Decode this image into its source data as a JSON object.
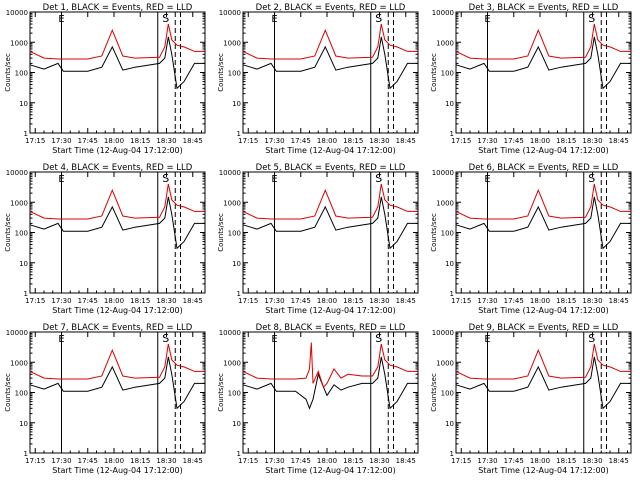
{
  "figure": {
    "ylabel": "Counts/sec",
    "xlabel": "Start Time (12-Aug-04 17:12:00)",
    "ytick_labels": [
      "1",
      "10",
      "100",
      "1000",
      "10000"
    ],
    "xtick_labels": [
      "17:15",
      "17:30",
      "17:45",
      "18:00",
      "18:15",
      "18:30",
      "18:45"
    ],
    "marker_S": "S",
    "marker_E": "E"
  },
  "colors": {
    "events": "#000000",
    "lld": "#dd0000"
  },
  "chart_data": [
    {
      "type": "line",
      "title": "Det 1, BLACK = Events, RED = LLD",
      "x_unit": "HH:MM",
      "xlim": [
        "17:12",
        "18:52"
      ],
      "ylim": [
        1,
        10000
      ],
      "yscale": "log",
      "series": [
        {
          "name": "Events",
          "x": [
            "17:12",
            "17:20",
            "17:28",
            "17:31",
            "17:45",
            "17:53",
            "17:59",
            "18:05",
            "18:12",
            "18:26",
            "18:29",
            "18:31",
            "18:33",
            "18:36",
            "18:40",
            "18:46",
            "18:52"
          ],
          "y": [
            180,
            130,
            200,
            110,
            110,
            150,
            700,
            120,
            150,
            200,
            300,
            1500,
            400,
            30,
            50,
            200,
            200
          ]
        },
        {
          "name": "LLD",
          "x": [
            "17:12",
            "17:20",
            "17:28",
            "17:31",
            "17:45",
            "17:53",
            "17:59",
            "18:05",
            "18:12",
            "18:26",
            "18:29",
            "18:31",
            "18:33",
            "18:36",
            "18:40",
            "18:46",
            "18:52"
          ],
          "y": [
            500,
            300,
            280,
            280,
            280,
            350,
            2500,
            350,
            300,
            320,
            700,
            4000,
            1200,
            800,
            700,
            500,
            500
          ]
        }
      ],
      "vlines": [
        "17:30",
        "18:25"
      ],
      "vlines_dashed": [
        "18:35",
        "18:38"
      ]
    },
    {
      "type": "line",
      "title": "Det 2, BLACK = Events, RED = LLD",
      "x_unit": "HH:MM",
      "xlim": [
        "17:12",
        "18:52"
      ],
      "ylim": [
        1,
        10000
      ],
      "yscale": "log",
      "series": [
        {
          "name": "Events",
          "x": [
            "17:12",
            "17:20",
            "17:28",
            "17:31",
            "17:45",
            "17:53",
            "17:59",
            "18:05",
            "18:12",
            "18:26",
            "18:29",
            "18:31",
            "18:33",
            "18:36",
            "18:40",
            "18:46",
            "18:52"
          ],
          "y": [
            180,
            130,
            200,
            110,
            110,
            150,
            700,
            120,
            150,
            200,
            300,
            1500,
            400,
            30,
            50,
            200,
            200
          ]
        },
        {
          "name": "LLD",
          "x": [
            "17:12",
            "17:20",
            "17:28",
            "17:31",
            "17:45",
            "17:53",
            "17:59",
            "18:05",
            "18:12",
            "18:26",
            "18:29",
            "18:31",
            "18:33",
            "18:36",
            "18:40",
            "18:46",
            "18:52"
          ],
          "y": [
            500,
            300,
            280,
            280,
            280,
            350,
            2500,
            350,
            300,
            320,
            700,
            4000,
            1200,
            800,
            700,
            500,
            500
          ]
        }
      ],
      "vlines": [
        "17:30",
        "18:25"
      ],
      "vlines_dashed": [
        "18:35",
        "18:38"
      ]
    },
    {
      "type": "line",
      "title": "Det 3, BLACK = Events, RED = LLD",
      "x_unit": "HH:MM",
      "xlim": [
        "17:12",
        "18:52"
      ],
      "ylim": [
        1,
        10000
      ],
      "yscale": "log",
      "series": [
        {
          "name": "Events",
          "x": [
            "17:12",
            "17:20",
            "17:28",
            "17:31",
            "17:45",
            "17:53",
            "17:59",
            "18:05",
            "18:12",
            "18:26",
            "18:29",
            "18:31",
            "18:33",
            "18:36",
            "18:40",
            "18:46",
            "18:52"
          ],
          "y": [
            180,
            130,
            200,
            110,
            110,
            150,
            700,
            120,
            150,
            200,
            300,
            1500,
            400,
            30,
            50,
            200,
            200
          ]
        },
        {
          "name": "LLD",
          "x": [
            "17:12",
            "17:20",
            "17:28",
            "17:31",
            "17:45",
            "17:53",
            "17:59",
            "18:05",
            "18:12",
            "18:26",
            "18:29",
            "18:31",
            "18:33",
            "18:36",
            "18:40",
            "18:46",
            "18:52"
          ],
          "y": [
            500,
            300,
            280,
            280,
            280,
            350,
            2500,
            350,
            300,
            320,
            700,
            4000,
            1200,
            800,
            700,
            500,
            500
          ]
        }
      ],
      "vlines": [
        "17:30",
        "18:25"
      ],
      "vlines_dashed": [
        "18:35",
        "18:38"
      ]
    },
    {
      "type": "line",
      "title": "Det 4, BLACK = Events, RED = LLD",
      "x_unit": "HH:MM",
      "xlim": [
        "17:12",
        "18:52"
      ],
      "ylim": [
        1,
        10000
      ],
      "yscale": "log",
      "series": [
        {
          "name": "Events",
          "x": [
            "17:12",
            "17:20",
            "17:28",
            "17:31",
            "17:45",
            "17:53",
            "17:59",
            "18:05",
            "18:12",
            "18:26",
            "18:29",
            "18:31",
            "18:33",
            "18:36",
            "18:40",
            "18:46",
            "18:52"
          ],
          "y": [
            180,
            130,
            200,
            110,
            110,
            150,
            700,
            120,
            150,
            200,
            300,
            1500,
            400,
            30,
            50,
            200,
            200
          ]
        },
        {
          "name": "LLD",
          "x": [
            "17:12",
            "17:20",
            "17:28",
            "17:31",
            "17:45",
            "17:53",
            "17:59",
            "18:05",
            "18:12",
            "18:26",
            "18:29",
            "18:31",
            "18:33",
            "18:36",
            "18:40",
            "18:46",
            "18:52"
          ],
          "y": [
            500,
            300,
            280,
            280,
            280,
            350,
            2500,
            350,
            300,
            320,
            700,
            4000,
            1200,
            800,
            700,
            500,
            500
          ]
        }
      ],
      "vlines": [
        "17:30",
        "18:25"
      ],
      "vlines_dashed": [
        "18:35",
        "18:38"
      ]
    },
    {
      "type": "line",
      "title": "Det 5, BLACK = Events, RED = LLD",
      "x_unit": "HH:MM",
      "xlim": [
        "17:12",
        "18:52"
      ],
      "ylim": [
        1,
        10000
      ],
      "yscale": "log",
      "series": [
        {
          "name": "Events",
          "x": [
            "17:12",
            "17:20",
            "17:28",
            "17:31",
            "17:45",
            "17:53",
            "17:59",
            "18:05",
            "18:12",
            "18:26",
            "18:29",
            "18:31",
            "18:33",
            "18:36",
            "18:40",
            "18:46",
            "18:52"
          ],
          "y": [
            180,
            130,
            200,
            110,
            110,
            150,
            700,
            120,
            150,
            200,
            300,
            1500,
            400,
            30,
            50,
            200,
            200
          ]
        },
        {
          "name": "LLD",
          "x": [
            "17:12",
            "17:20",
            "17:28",
            "17:31",
            "17:45",
            "17:53",
            "17:59",
            "18:05",
            "18:12",
            "18:26",
            "18:29",
            "18:31",
            "18:33",
            "18:36",
            "18:40",
            "18:46",
            "18:52"
          ],
          "y": [
            500,
            300,
            280,
            280,
            280,
            350,
            2500,
            350,
            300,
            320,
            700,
            4000,
            1200,
            800,
            700,
            500,
            500
          ]
        }
      ],
      "vlines": [
        "17:30",
        "18:25"
      ],
      "vlines_dashed": [
        "18:35",
        "18:38"
      ]
    },
    {
      "type": "line",
      "title": "Det 6, BLACK = Events, RED = LLD",
      "x_unit": "HH:MM",
      "xlim": [
        "17:12",
        "18:52"
      ],
      "ylim": [
        1,
        10000
      ],
      "yscale": "log",
      "series": [
        {
          "name": "Events",
          "x": [
            "17:12",
            "17:20",
            "17:28",
            "17:31",
            "17:45",
            "17:53",
            "17:59",
            "18:05",
            "18:12",
            "18:26",
            "18:29",
            "18:31",
            "18:33",
            "18:36",
            "18:40",
            "18:46",
            "18:52"
          ],
          "y": [
            180,
            130,
            200,
            110,
            110,
            150,
            700,
            120,
            150,
            200,
            300,
            1500,
            400,
            30,
            50,
            200,
            200
          ]
        },
        {
          "name": "LLD",
          "x": [
            "17:12",
            "17:20",
            "17:28",
            "17:31",
            "17:45",
            "17:53",
            "17:59",
            "18:05",
            "18:12",
            "18:26",
            "18:29",
            "18:31",
            "18:33",
            "18:36",
            "18:40",
            "18:46",
            "18:52"
          ],
          "y": [
            500,
            300,
            280,
            280,
            280,
            350,
            2500,
            350,
            300,
            320,
            700,
            4000,
            1200,
            800,
            700,
            500,
            500
          ]
        }
      ],
      "vlines": [
        "17:30",
        "18:25"
      ],
      "vlines_dashed": [
        "18:35",
        "18:38"
      ]
    },
    {
      "type": "line",
      "title": "Det 7, BLACK = Events, RED = LLD",
      "x_unit": "HH:MM",
      "xlim": [
        "17:12",
        "18:52"
      ],
      "ylim": [
        1,
        10000
      ],
      "yscale": "log",
      "series": [
        {
          "name": "Events",
          "x": [
            "17:12",
            "17:20",
            "17:28",
            "17:31",
            "17:45",
            "17:53",
            "17:59",
            "18:05",
            "18:12",
            "18:26",
            "18:29",
            "18:31",
            "18:33",
            "18:36",
            "18:40",
            "18:46",
            "18:52"
          ],
          "y": [
            180,
            130,
            200,
            110,
            110,
            150,
            700,
            120,
            150,
            200,
            300,
            1500,
            400,
            30,
            50,
            200,
            200
          ]
        },
        {
          "name": "LLD",
          "x": [
            "17:12",
            "17:20",
            "17:28",
            "17:31",
            "17:45",
            "17:53",
            "17:59",
            "18:05",
            "18:12",
            "18:26",
            "18:29",
            "18:31",
            "18:33",
            "18:36",
            "18:40",
            "18:46",
            "18:52"
          ],
          "y": [
            500,
            300,
            280,
            280,
            280,
            350,
            2500,
            350,
            300,
            320,
            700,
            4000,
            1200,
            800,
            700,
            500,
            500
          ]
        }
      ],
      "vlines": [
        "17:30",
        "18:25"
      ],
      "vlines_dashed": [
        "18:35",
        "18:38"
      ]
    },
    {
      "type": "line",
      "title": "Det 8, BLACK = Events, RED = LLD",
      "x_unit": "HH:MM",
      "xlim": [
        "17:12",
        "18:52"
      ],
      "ylim": [
        1,
        10000
      ],
      "yscale": "log",
      "series": [
        {
          "name": "Events",
          "x": [
            "17:12",
            "17:20",
            "17:28",
            "17:31",
            "17:42",
            "17:48",
            "17:50",
            "17:52",
            "17:55",
            "17:58",
            "18:00",
            "18:04",
            "18:08",
            "18:12",
            "18:20",
            "18:26",
            "18:29",
            "18:31",
            "18:33",
            "18:36",
            "18:40",
            "18:46",
            "18:52"
          ],
          "y": [
            180,
            130,
            200,
            110,
            110,
            60,
            30,
            60,
            400,
            150,
            80,
            180,
            120,
            150,
            200,
            200,
            300,
            1500,
            400,
            30,
            50,
            200,
            200
          ]
        },
        {
          "name": "LLD",
          "x": [
            "17:12",
            "17:20",
            "17:28",
            "17:31",
            "17:42",
            "17:48",
            "17:50",
            "17:51",
            "17:52",
            "17:55",
            "17:58",
            "18:00",
            "18:04",
            "18:08",
            "18:12",
            "18:20",
            "18:26",
            "18:29",
            "18:31",
            "18:33",
            "18:36",
            "18:40",
            "18:46",
            "18:52"
          ],
          "y": [
            500,
            300,
            280,
            280,
            280,
            300,
            600,
            4500,
            200,
            500,
            150,
            200,
            600,
            300,
            400,
            350,
            350,
            700,
            4000,
            1200,
            800,
            700,
            500,
            500
          ]
        }
      ],
      "vlines": [
        "17:30",
        "18:25"
      ],
      "vlines_dashed": [
        "18:35",
        "18:38"
      ]
    },
    {
      "type": "line",
      "title": "Det 9, BLACK = Events, RED = LLD",
      "x_unit": "HH:MM",
      "xlim": [
        "17:12",
        "18:52"
      ],
      "ylim": [
        1,
        10000
      ],
      "yscale": "log",
      "series": [
        {
          "name": "Events",
          "x": [
            "17:12",
            "17:20",
            "17:28",
            "17:31",
            "17:45",
            "17:53",
            "17:59",
            "18:05",
            "18:12",
            "18:26",
            "18:29",
            "18:31",
            "18:33",
            "18:36",
            "18:40",
            "18:46",
            "18:52"
          ],
          "y": [
            180,
            130,
            200,
            110,
            110,
            150,
            700,
            120,
            150,
            200,
            300,
            1500,
            400,
            30,
            50,
            200,
            200
          ]
        },
        {
          "name": "LLD",
          "x": [
            "17:12",
            "17:20",
            "17:28",
            "17:31",
            "17:45",
            "17:53",
            "17:59",
            "18:05",
            "18:12",
            "18:26",
            "18:29",
            "18:31",
            "18:33",
            "18:36",
            "18:40",
            "18:46",
            "18:52"
          ],
          "y": [
            500,
            300,
            280,
            280,
            280,
            350,
            2500,
            350,
            300,
            320,
            700,
            4000,
            1200,
            800,
            700,
            500,
            500
          ]
        }
      ],
      "vlines": [
        "17:30",
        "18:25"
      ],
      "vlines_dashed": [
        "18:35",
        "18:38"
      ]
    }
  ]
}
